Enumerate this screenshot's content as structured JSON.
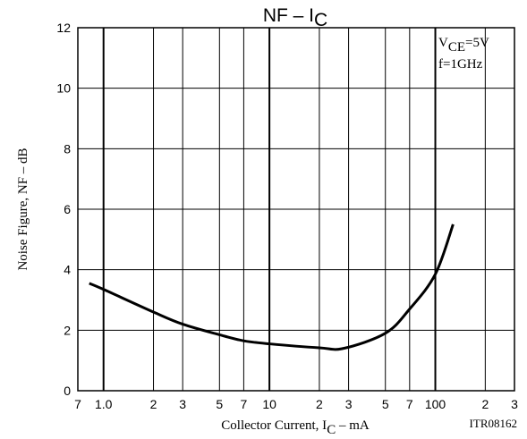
{
  "chart_data": {
    "type": "line",
    "title": {
      "main": "NF  –  I",
      "sub": "C"
    },
    "y_label": "Noise Figure, NF  –  dB",
    "x_label": {
      "main": "Collector Current, I",
      "sub": "C",
      "unit": "  –  mA"
    },
    "annotations": {
      "condition_main": "V",
      "condition_sub": "CE",
      "condition_value": "=5V",
      "frequency": "f=1GHz",
      "code": "ITR08162"
    },
    "log_x": true,
    "grid": true,
    "xlim": [
      0.7,
      300
    ],
    "ylim": [
      0,
      12
    ],
    "xticks": [
      {
        "value": 0.7,
        "label": "7"
      },
      {
        "value": 1,
        "label": "1.0"
      },
      2,
      3,
      5,
      7,
      10,
      {
        "value": 20,
        "label": "2"
      },
      {
        "value": 30,
        "label": "3"
      },
      {
        "value": 50,
        "label": "5"
      },
      {
        "value": 70,
        "label": "7"
      },
      100,
      {
        "value": 200,
        "label": "2"
      },
      {
        "value": 300,
        "label": "3"
      }
    ],
    "yticks": [
      0,
      2,
      4,
      6,
      8,
      10,
      12
    ],
    "series": [
      {
        "name": "NF",
        "color": "#000000",
        "x": [
          0.82,
          1,
          2,
          3,
          5,
          7,
          10,
          20,
          28,
          50,
          70,
          100,
          128
        ],
        "values": [
          3.55,
          3.35,
          2.6,
          2.2,
          1.85,
          1.65,
          1.55,
          1.42,
          1.4,
          1.9,
          2.7,
          3.85,
          5.5
        ]
      }
    ]
  }
}
